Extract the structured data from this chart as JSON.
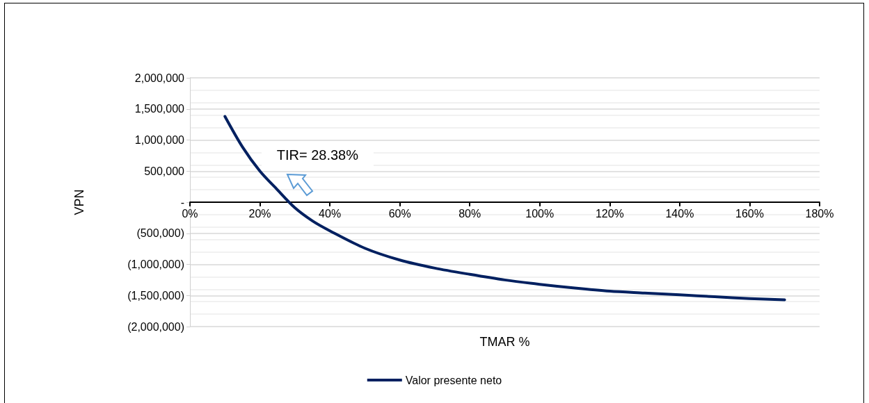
{
  "chart_data": {
    "type": "line",
    "xlabel": "TMAR %",
    "ylabel": "VPN",
    "x": [
      10,
      15,
      20,
      25,
      30,
      35,
      40,
      50,
      60,
      70,
      80,
      90,
      100,
      110,
      120,
      130,
      140,
      150,
      160,
      170
    ],
    "series": [
      {
        "name": "Valor presente neto",
        "color": "#002060",
        "values": [
          1380000,
          890000,
          500000,
          200000,
          -90000,
          -300000,
          -460000,
          -740000,
          -930000,
          -1060000,
          -1160000,
          -1250000,
          -1320000,
          -1380000,
          -1430000,
          -1460000,
          -1490000,
          -1520000,
          -1550000,
          -1570000
        ]
      }
    ],
    "xlim": [
      0,
      180
    ],
    "xticks": [
      {
        "value": 0,
        "label": "0%"
      },
      {
        "value": 20,
        "label": "20%"
      },
      {
        "value": 40,
        "label": "40%"
      },
      {
        "value": 60,
        "label": "60%"
      },
      {
        "value": 80,
        "label": "80%"
      },
      {
        "value": 100,
        "label": "100%"
      },
      {
        "value": 120,
        "label": "120%"
      },
      {
        "value": 140,
        "label": "140%"
      },
      {
        "value": 160,
        "label": "160%"
      },
      {
        "value": 180,
        "label": "180%"
      }
    ],
    "ylim": [
      -2000000,
      2000000
    ],
    "yticks": [
      {
        "value": -2000000,
        "label": "(2,000,000)"
      },
      {
        "value": -1500000,
        "label": "(1,500,000)"
      },
      {
        "value": -1000000,
        "label": "(1,000,000)"
      },
      {
        "value": -500000,
        "label": "(500,000)"
      },
      {
        "value": 0,
        "label": "-"
      },
      {
        "value": 500000,
        "label": "500,000"
      },
      {
        "value": 1000000,
        "label": "1,000,000"
      },
      {
        "value": 1500000,
        "label": "1,500,000"
      },
      {
        "value": 2000000,
        "label": "2,000,000"
      }
    ],
    "annotations": [
      {
        "text": "TIR= 28.38%",
        "x": 28.38,
        "y": 0
      }
    ],
    "grid": "y",
    "legend": "bottom",
    "marker": "none",
    "line_style": "solid"
  }
}
